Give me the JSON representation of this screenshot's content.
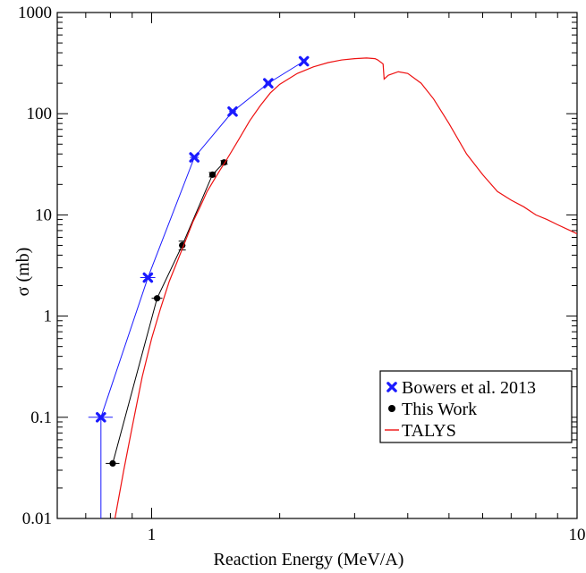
{
  "chart_data": {
    "type": "line",
    "title": "",
    "xlabel": "Reaction Energy (MeV/A)",
    "ylabel": "σ (mb)",
    "xscale": "log",
    "yscale": "log",
    "xlim": [
      0.6,
      10
    ],
    "ylim": [
      0.01,
      1000
    ],
    "grid": false,
    "legend_position": "bottom-right",
    "x_ticks": [
      {
        "value": 1,
        "label": "1"
      },
      {
        "value": 10,
        "label": "10"
      }
    ],
    "y_ticks": [
      {
        "value": 0.01,
        "label": "0.01"
      },
      {
        "value": 0.1,
        "label": "0.1"
      },
      {
        "value": 1,
        "label": "1"
      },
      {
        "value": 10,
        "label": "10"
      },
      {
        "value": 100,
        "label": "100"
      },
      {
        "value": 1000,
        "label": "1000"
      }
    ],
    "series": [
      {
        "name": "Bowers et al. 2013",
        "color": "#1a1aff",
        "marker": "x-cross",
        "x": [
          0.76,
          0.98,
          1.26,
          1.55,
          1.88,
          2.28
        ],
        "y": [
          0.1,
          2.4,
          37,
          105,
          200,
          330
        ],
        "xerr": [
          0.05,
          0.04,
          0.03,
          0.03,
          0.03,
          0.03
        ],
        "y_lower": [
          0.0001,
          2.4,
          37,
          105,
          200,
          330
        ]
      },
      {
        "name": "This Work",
        "color": "#000000",
        "marker": "circle",
        "x": [
          0.81,
          1.03,
          1.18,
          1.39,
          1.48
        ],
        "y": [
          0.035,
          1.5,
          5.0,
          25,
          33
        ],
        "xerr": [
          0.03,
          0.03,
          0.02,
          0.02,
          0.02
        ],
        "yerr_frac": [
          0.0,
          0.0,
          0.1,
          0.05,
          0.04
        ]
      },
      {
        "name": "TALYS",
        "color": "#ee1111",
        "marker": "none",
        "x": [
          0.82,
          0.86,
          0.9,
          0.95,
          1.0,
          1.05,
          1.1,
          1.15,
          1.2,
          1.25,
          1.3,
          1.35,
          1.4,
          1.45,
          1.5,
          1.6,
          1.7,
          1.8,
          1.9,
          2.0,
          2.2,
          2.4,
          2.6,
          2.8,
          3.0,
          3.2,
          3.35,
          3.4,
          3.5,
          3.52,
          3.6,
          3.8,
          4.0,
          4.3,
          4.6,
          5.0,
          5.5,
          6.0,
          6.5,
          7.0,
          7.5,
          8.0,
          8.5,
          9.0,
          9.5,
          10.0
        ],
        "y": [
          0.01,
          0.03,
          0.08,
          0.25,
          0.6,
          1.2,
          2.2,
          3.5,
          5.5,
          8.5,
          12,
          17,
          22,
          28,
          35,
          55,
          85,
          120,
          160,
          195,
          250,
          290,
          320,
          340,
          350,
          355,
          350,
          340,
          310,
          220,
          240,
          260,
          250,
          200,
          140,
          80,
          40,
          25,
          17,
          14,
          12,
          10,
          9,
          8,
          7.2,
          6.5
        ]
      }
    ]
  }
}
